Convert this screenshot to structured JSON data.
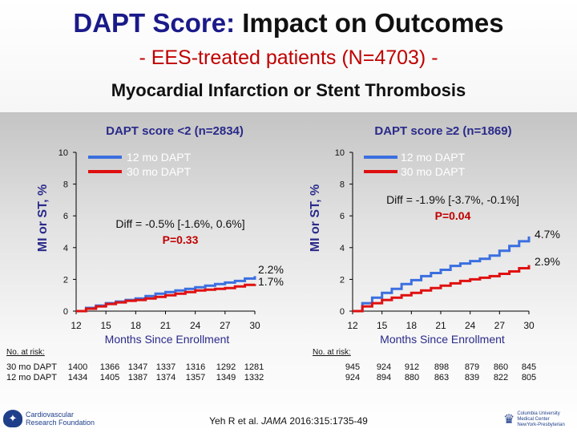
{
  "header": {
    "title_accent": "DAPT Score:",
    "title_rest": " Impact on Outcomes",
    "subtitle": "- EES-treated patients (N=4703) -",
    "endpoint": "Myocardial Infarction or Stent Thrombosis"
  },
  "colors": {
    "dapt12": "#3b6fe0",
    "dapt30": "#e01010",
    "accent_title": "#1a1a8a",
    "subtitle": "#c00000",
    "pvalue": "#c00000"
  },
  "chart_data": [
    {
      "type": "line",
      "title": "DAPT score <2 (n=2834)",
      "xlabel": "Months Since Enrollment",
      "ylabel": "MI or ST, %",
      "xlim": [
        12,
        30
      ],
      "ylim": [
        0,
        10
      ],
      "xticks": [
        "12",
        "15",
        "18",
        "21",
        "24",
        "27",
        "30"
      ],
      "yticks": [
        "0",
        "2",
        "4",
        "6",
        "8",
        "10"
      ],
      "series": [
        {
          "name": "12 mo DAPT",
          "x": [
            12,
            13,
            14,
            15,
            16,
            17,
            18,
            19,
            20,
            21,
            22,
            23,
            24,
            25,
            26,
            27,
            28,
            29,
            30
          ],
          "y": [
            0,
            0.2,
            0.35,
            0.5,
            0.6,
            0.7,
            0.8,
            0.95,
            1.1,
            1.2,
            1.3,
            1.4,
            1.5,
            1.6,
            1.7,
            1.8,
            1.9,
            2.05,
            2.2
          ]
        },
        {
          "name": "30 mo DAPT",
          "x": [
            12,
            13,
            14,
            15,
            16,
            17,
            18,
            19,
            20,
            21,
            22,
            23,
            24,
            25,
            26,
            27,
            28,
            29,
            30
          ],
          "y": [
            0,
            0.15,
            0.3,
            0.45,
            0.55,
            0.65,
            0.7,
            0.8,
            0.9,
            1.0,
            1.1,
            1.2,
            1.3,
            1.35,
            1.4,
            1.45,
            1.55,
            1.65,
            1.7
          ]
        }
      ],
      "end_labels": [
        "2.2%",
        "1.7%"
      ],
      "diff_text": "Diff = -0.5% [-1.6%, 0.6%]",
      "p_text": "P=0.33",
      "risk_label": "No. at risk:",
      "risk_rows": [
        {
          "label": "30 mo DAPT",
          "values": [
            "1400",
            "1366",
            "1347",
            "1337",
            "1316",
            "1292",
            "1281"
          ]
        },
        {
          "label": "12 mo DAPT",
          "values": [
            "1434",
            "1405",
            "1387",
            "1374",
            "1357",
            "1349",
            "1332"
          ]
        }
      ]
    },
    {
      "type": "line",
      "title": "DAPT score ≥2 (n=1869)",
      "xlabel": "Months Since Enrollment",
      "ylabel": "MI or ST, %",
      "xlim": [
        12,
        30
      ],
      "ylim": [
        0,
        10
      ],
      "xticks": [
        "12",
        "15",
        "18",
        "21",
        "24",
        "27",
        "30"
      ],
      "yticks": [
        "0",
        "2",
        "4",
        "6",
        "8",
        "10"
      ],
      "series": [
        {
          "name": "12 mo DAPT",
          "x": [
            12,
            13,
            14,
            15,
            16,
            17,
            18,
            19,
            20,
            21,
            22,
            23,
            24,
            25,
            26,
            27,
            28,
            29,
            30
          ],
          "y": [
            0,
            0.5,
            0.85,
            1.15,
            1.4,
            1.7,
            1.95,
            2.2,
            2.4,
            2.6,
            2.85,
            3.0,
            3.15,
            3.3,
            3.5,
            3.8,
            4.1,
            4.4,
            4.7
          ]
        },
        {
          "name": "30 mo DAPT",
          "x": [
            12,
            13,
            14,
            15,
            16,
            17,
            18,
            19,
            20,
            21,
            22,
            23,
            24,
            25,
            26,
            27,
            28,
            29,
            30
          ],
          "y": [
            0,
            0.3,
            0.5,
            0.7,
            0.85,
            1.0,
            1.15,
            1.3,
            1.45,
            1.6,
            1.75,
            1.9,
            2.0,
            2.1,
            2.2,
            2.35,
            2.5,
            2.7,
            2.9
          ]
        }
      ],
      "end_labels": [
        "4.7%",
        "2.9%"
      ],
      "diff_text": "Diff = -1.9% [-3.7%, -0.1%]",
      "p_text": "P=0.04",
      "risk_label": "No. at risk:",
      "risk_rows": [
        {
          "label": "30 mo DAPT",
          "values": [
            "945",
            "924",
            "912",
            "898",
            "879",
            "860",
            "845"
          ]
        },
        {
          "label": "12 mo DAPT",
          "values": [
            "924",
            "894",
            "880",
            "863",
            "839",
            "822",
            "805"
          ]
        }
      ]
    }
  ],
  "footer": {
    "citation_author": "Yeh R et al. ",
    "citation_journal": "JAMA",
    "citation_rest": " 2016:315:1735-49",
    "logo_left_line1": "Cardiovascular",
    "logo_left_line2": "Research Foundation",
    "logo_right_line1": "Columbia University",
    "logo_right_line2": "Medical Center",
    "logo_right_line3": "NewYork-Presbyterian"
  }
}
